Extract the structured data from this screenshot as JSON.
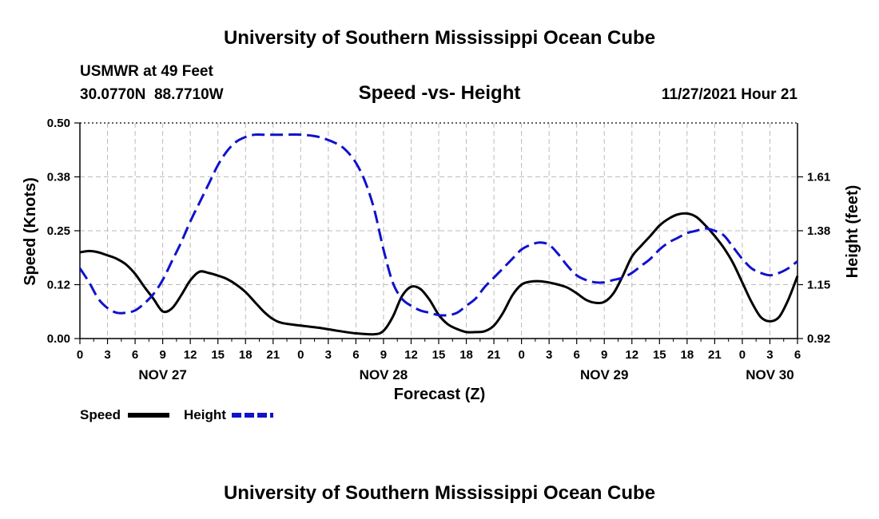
{
  "chart_data": {
    "type": "line",
    "title": "University of Southern Mississippi Ocean Cube",
    "footer_title": "University of Southern Mississippi Ocean Cube",
    "subtitle": "Speed -vs- Height",
    "station": "USMWR at 49 Feet",
    "coordinates": "30.0770N  88.7710W",
    "timestamp": "11/27/2021 Hour 21",
    "xlabel": "Forecast (Z)",
    "ylabel_left": "Speed (Knots)",
    "ylabel_right": "Height (feet)",
    "x_range": [
      0,
      78
    ],
    "ylim_left": [
      0.0,
      0.5
    ],
    "ylim_right": [
      0.92,
      1.84
    ],
    "x_ticks": [
      0,
      3,
      6,
      9,
      12,
      15,
      18,
      21,
      24,
      27,
      30,
      33,
      36,
      39,
      42,
      45,
      48,
      51,
      54,
      57,
      60,
      63,
      66,
      69,
      72,
      75,
      78
    ],
    "x_tick_labels": [
      "0",
      "3",
      "6",
      "9",
      "12",
      "15",
      "18",
      "21",
      "0",
      "3",
      "6",
      "9",
      "12",
      "15",
      "18",
      "21",
      "0",
      "3",
      "6",
      "9",
      "12",
      "15",
      "18",
      "21",
      "0",
      "3",
      "6"
    ],
    "left_ticks": [
      0.0,
      0.125,
      0.25,
      0.375,
      0.5
    ],
    "left_tick_labels": [
      "0.00",
      "0.12",
      "0.25",
      "0.38",
      "0.50"
    ],
    "right_ticks": [
      0.92,
      1.15,
      1.38,
      1.61
    ],
    "right_tick_labels": [
      "0.92",
      "1.15",
      "1.38",
      "1.61"
    ],
    "date_labels": [
      {
        "x": 9,
        "label": "NOV 27"
      },
      {
        "x": 33,
        "label": "NOV 28"
      },
      {
        "x": 57,
        "label": "NOV 29"
      },
      {
        "x": 75,
        "label": "NOV 30"
      }
    ],
    "legend_position": "bottom-left",
    "grid": true,
    "series": [
      {
        "name": "Speed",
        "axis": "left",
        "color": "#000000",
        "dash": "solid",
        "x": [
          0,
          1,
          2,
          3,
          4,
          5,
          6,
          7,
          8,
          9,
          10,
          11,
          12,
          13,
          14,
          15,
          16,
          17,
          18,
          19,
          20,
          21,
          22,
          24,
          26,
          28,
          30,
          32,
          33,
          34,
          35,
          36,
          37,
          38,
          39,
          40,
          41,
          42,
          43,
          44,
          45,
          46,
          47,
          48,
          49,
          50,
          51,
          52,
          53,
          54,
          55,
          56,
          57,
          58,
          59,
          60,
          61,
          62,
          63,
          64,
          65,
          66,
          67,
          68,
          69,
          70,
          71,
          72,
          73,
          74,
          75,
          76,
          77,
          78
        ],
        "values": [
          0.2,
          0.203,
          0.2,
          0.193,
          0.185,
          0.172,
          0.15,
          0.12,
          0.092,
          0.063,
          0.07,
          0.1,
          0.135,
          0.155,
          0.152,
          0.146,
          0.138,
          0.125,
          0.108,
          0.085,
          0.062,
          0.045,
          0.036,
          0.03,
          0.025,
          0.018,
          0.012,
          0.01,
          0.018,
          0.05,
          0.098,
          0.12,
          0.115,
          0.09,
          0.055,
          0.033,
          0.022,
          0.015,
          0.015,
          0.017,
          0.03,
          0.06,
          0.1,
          0.125,
          0.132,
          0.133,
          0.13,
          0.125,
          0.118,
          0.105,
          0.09,
          0.083,
          0.085,
          0.105,
          0.145,
          0.19,
          0.215,
          0.238,
          0.262,
          0.278,
          0.288,
          0.29,
          0.282,
          0.262,
          0.238,
          0.21,
          0.175,
          0.13,
          0.085,
          0.05,
          0.04,
          0.05,
          0.09,
          0.145
        ]
      },
      {
        "name": "Height",
        "axis": "right",
        "color": "#1111cc",
        "dash": "dashed",
        "x": [
          0,
          1,
          2,
          3,
          4,
          5,
          6,
          7,
          8,
          9,
          10,
          11,
          12,
          13,
          14,
          15,
          16,
          17,
          18,
          19,
          20,
          21,
          22,
          24,
          26,
          28,
          29,
          30,
          31,
          32,
          33,
          34,
          35,
          36,
          37,
          38,
          39,
          40,
          41,
          42,
          43,
          44,
          45,
          46,
          47,
          48,
          49,
          50,
          51,
          52,
          53,
          54,
          55,
          56,
          57,
          58,
          59,
          60,
          61,
          62,
          63,
          64,
          65,
          66,
          67,
          68,
          69,
          70,
          71,
          72,
          73,
          74,
          75,
          76,
          77,
          78
        ],
        "values": [
          1.22,
          1.16,
          1.09,
          1.05,
          1.03,
          1.03,
          1.04,
          1.07,
          1.11,
          1.17,
          1.25,
          1.33,
          1.42,
          1.5,
          1.58,
          1.66,
          1.72,
          1.76,
          1.78,
          1.79,
          1.79,
          1.79,
          1.79,
          1.79,
          1.78,
          1.75,
          1.72,
          1.67,
          1.59,
          1.47,
          1.3,
          1.16,
          1.09,
          1.06,
          1.04,
          1.03,
          1.02,
          1.02,
          1.03,
          1.06,
          1.09,
          1.14,
          1.18,
          1.22,
          1.26,
          1.3,
          1.32,
          1.33,
          1.32,
          1.28,
          1.23,
          1.19,
          1.17,
          1.16,
          1.16,
          1.17,
          1.18,
          1.2,
          1.23,
          1.26,
          1.3,
          1.33,
          1.35,
          1.37,
          1.38,
          1.39,
          1.38,
          1.36,
          1.31,
          1.26,
          1.22,
          1.2,
          1.19,
          1.2,
          1.22,
          1.25
        ]
      }
    ]
  }
}
